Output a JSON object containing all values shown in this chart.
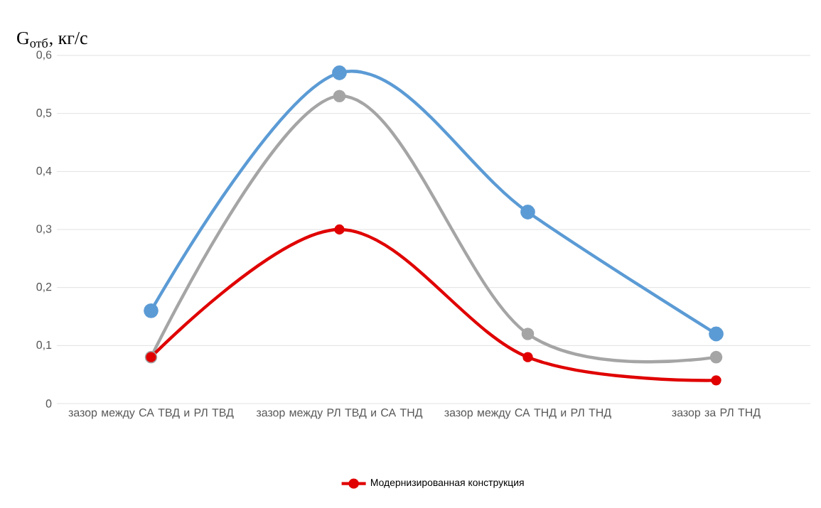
{
  "chart_data": {
    "type": "line",
    "ylabel": "G$_{отб}$, кг/с",
    "categories": [
      "зазор между СА ТВД и РЛ ТВД",
      "зазор между РЛ ТВД и СА ТНД",
      "зазор между СА ТНД и РЛ ТНД",
      "зазор за РЛ ТНД"
    ],
    "series": [
      {
        "color": "#5b9bd5",
        "values": [
          0.16,
          0.57,
          0.33,
          0.12
        ]
      },
      {
        "color": "#a5a5a5",
        "values": [
          0.08,
          0.53,
          0.12,
          0.08
        ]
      },
      {
        "name": "Модернизированная конструкция",
        "color": "#e00000",
        "values": [
          0.08,
          0.3,
          0.08,
          0.04
        ]
      }
    ],
    "ylim": [
      0,
      0.6
    ],
    "yticks": [
      0,
      {
        "value": 0.1,
        "label": "0,1"
      },
      {
        "value": 0.2,
        "label": "0,2"
      },
      {
        "value": 0.3,
        "label": "0,3"
      },
      {
        "value": 0.4,
        "label": "0,4"
      },
      {
        "value": 0.5,
        "label": "0,5"
      },
      {
        "value": 0.6,
        "label": "0,6"
      }
    ],
    "grid": "y",
    "legend": "bottom",
    "marker": "circle",
    "line_style": "solid"
  }
}
